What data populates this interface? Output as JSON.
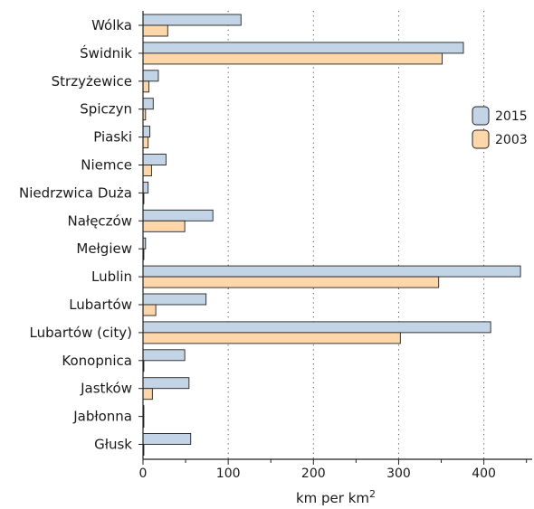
{
  "chart_data": {
    "type": "bar",
    "orientation": "horizontal",
    "categories": [
      "Wólka",
      "Świdnik",
      "Strzyżewice",
      "Spiczyn",
      "Piaski",
      "Niemce",
      "Niedrzwica Duża",
      "Nałęczów",
      "Mełgiew",
      "Lublin",
      "Lubartów",
      "Lubartów (city)",
      "Konopnica",
      "Jastków",
      "Jabłonna",
      "Głusk"
    ],
    "series": [
      {
        "name": "2015",
        "color": "#c2d4e6",
        "values": [
          115,
          376,
          18,
          12,
          8,
          27,
          6,
          82,
          3,
          443,
          74,
          408,
          49,
          54,
          1,
          56
        ]
      },
      {
        "name": "2003",
        "color": "#fdd7a9",
        "values": [
          29,
          351,
          7,
          3,
          6,
          10,
          1,
          49,
          1,
          347,
          15,
          302,
          1,
          11,
          1,
          1
        ]
      }
    ],
    "xlabel": "km per km",
    "xlabel_sup": "2",
    "xlim": [
      0,
      460
    ],
    "xticks": [
      0,
      100,
      200,
      300,
      400
    ],
    "grid": "vertical dotted",
    "legend_position": "right"
  }
}
